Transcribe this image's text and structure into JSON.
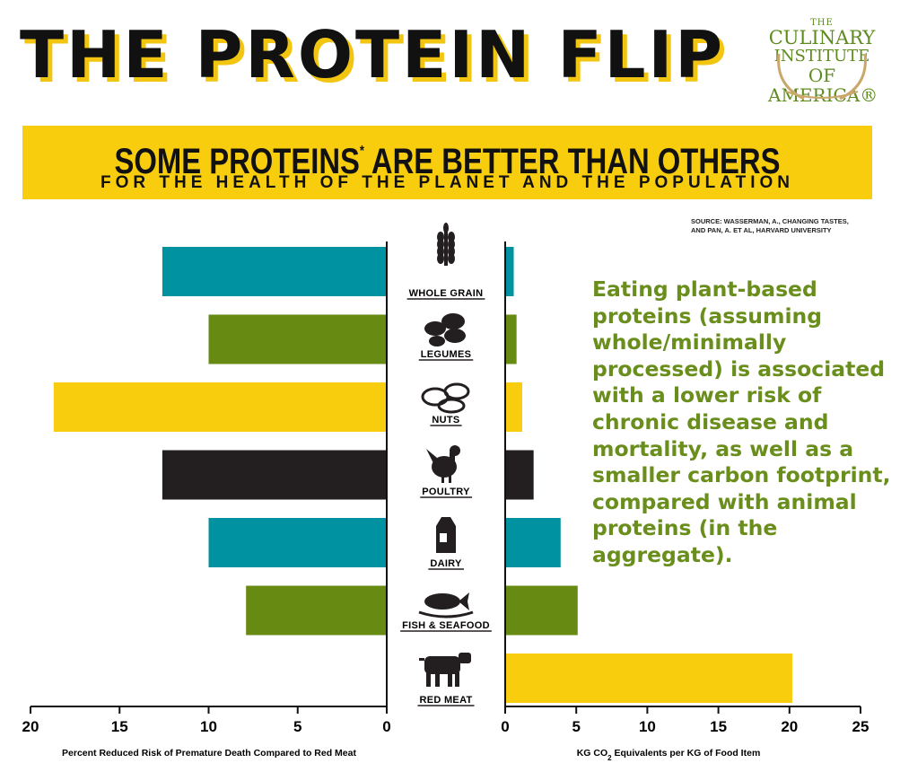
{
  "title": "THE PROTEIN FLIP",
  "logo": {
    "line1": "THE",
    "line2": "CULINARY",
    "line3": "INSTITUTE",
    "line4": "OF AMERICA®"
  },
  "subtitle": {
    "main": "SOME PROTEINS",
    "asterisk": "*",
    "rest": " ARE BETTER THAN OTHERS",
    "sub": "FOR THE HEALTH OF THE PLANET AND THE POPULATION"
  },
  "source": {
    "line1": "SOURCE: WASSERMAN, A., CHANGING TASTES,",
    "line2": "AND PAN, A. ET AL, HARVARD UNIVERSITY"
  },
  "callout": "Eating plant-based proteins (assuming whole/minimally processed) is associated with a lower risk of chronic disease and mortality, as well as a smaller carbon footprint, compared with animal proteins (in the aggregate).",
  "colors": {
    "teal": "#0092a0",
    "olive": "#668a12",
    "yellow": "#f8cd0e",
    "black": "#231f20"
  },
  "chart_data": [
    {
      "type": "bar",
      "orientation": "horizontal",
      "direction": "reversed",
      "categories": [
        "WHOLE GRAIN",
        "LEGUMES",
        "NUTS",
        "POULTRY",
        "DAIRY",
        "FISH & SEAFOOD",
        "RED MEAT"
      ],
      "values": [
        12.6,
        10,
        18.7,
        12.6,
        10,
        7.9,
        0
      ],
      "bar_colors": [
        "#0092a0",
        "#668a12",
        "#f8cd0e",
        "#231f20",
        "#0092a0",
        "#668a12",
        "#f8cd0e"
      ],
      "xlim": [
        0,
        20
      ],
      "ticks": [
        20,
        15,
        10,
        5,
        0
      ],
      "xlabel": "Percent Reduced Risk of Premature Death Compared to Red Meat"
    },
    {
      "type": "bar",
      "orientation": "horizontal",
      "categories": [
        "WHOLE GRAIN",
        "LEGUMES",
        "NUTS",
        "POULTRY",
        "DAIRY",
        "FISH & SEAFOOD",
        "RED MEAT"
      ],
      "values": [
        0.6,
        0.8,
        1.2,
        2.0,
        3.9,
        5.1,
        20.2
      ],
      "bar_colors": [
        "#0092a0",
        "#668a12",
        "#f8cd0e",
        "#231f20",
        "#0092a0",
        "#668a12",
        "#f8cd0e"
      ],
      "xlim": [
        0,
        25
      ],
      "ticks": [
        0,
        5,
        10,
        15,
        20,
        25
      ],
      "xlabel_pre": "KG CO",
      "xlabel_sub": "2",
      "xlabel_post": " Equivalents per KG of Food Item"
    }
  ]
}
